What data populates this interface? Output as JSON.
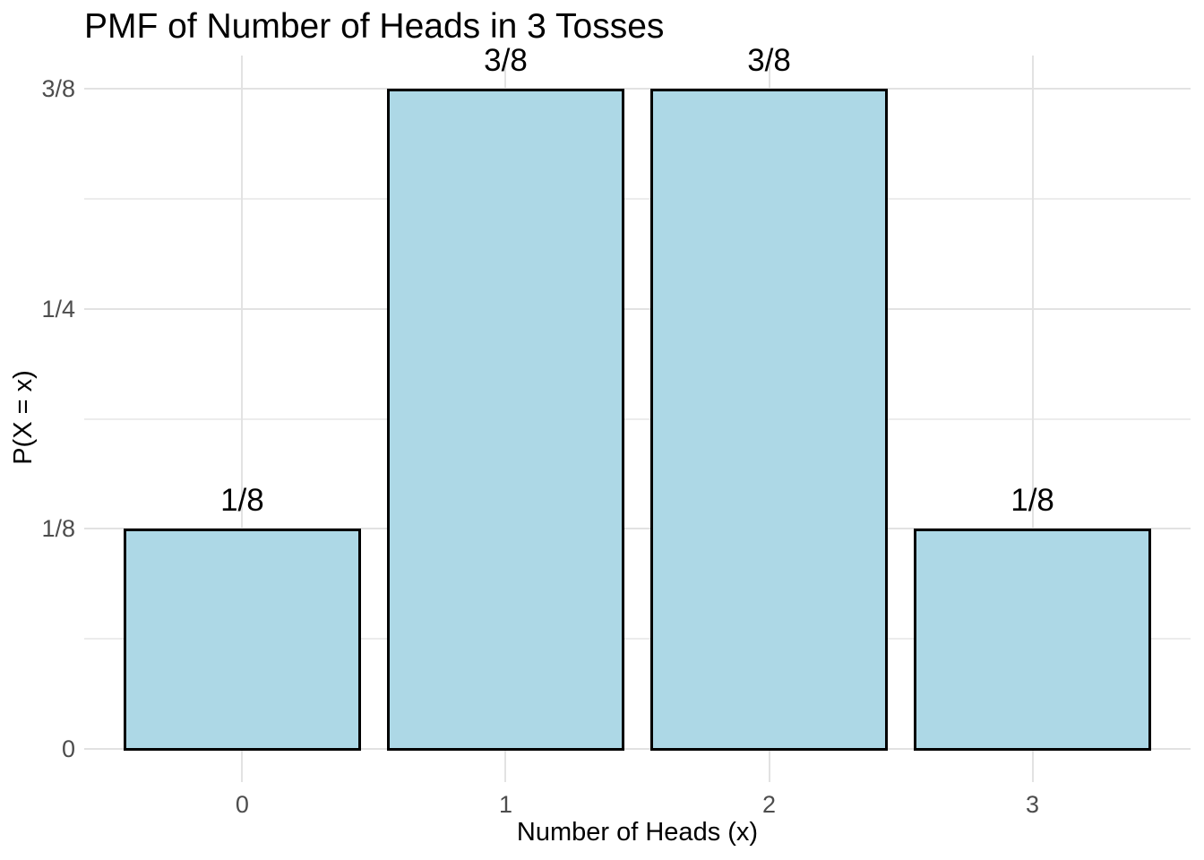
{
  "chart_data": {
    "type": "bar",
    "title": "PMF of Number of Heads in 3 Tosses",
    "xlabel": "Number of Heads (x)",
    "ylabel": "P(X = x)",
    "categories": [
      "0",
      "1",
      "2",
      "3"
    ],
    "values": [
      0.125,
      0.375,
      0.375,
      0.125
    ],
    "bar_value_labels": [
      "1/8",
      "3/8",
      "3/8",
      "1/8"
    ],
    "y_axis": {
      "tick_values": [
        0,
        0.125,
        0.25,
        0.375
      ],
      "tick_labels": [
        "0",
        "1/8",
        "1/4",
        "3/8"
      ],
      "minor_tick_values": [
        0.0625,
        0.1875,
        0.3125
      ],
      "range": [
        -0.01875,
        0.39375
      ]
    },
    "x_axis": {
      "range": [
        -0.6,
        3.6
      ],
      "bar_width": 0.9
    },
    "grid": "horizontal major+minor, vertical major; no axis lines, no ticks",
    "legend": "none",
    "colors": {
      "bar_fill": "#ADD8E6",
      "bar_border": "#000000",
      "grid_major": "#E2E2E2",
      "grid_minor": "#ECECEC",
      "axis_text": "#4D4D4D",
      "text": "#000000",
      "background": "#FFFFFF"
    }
  }
}
